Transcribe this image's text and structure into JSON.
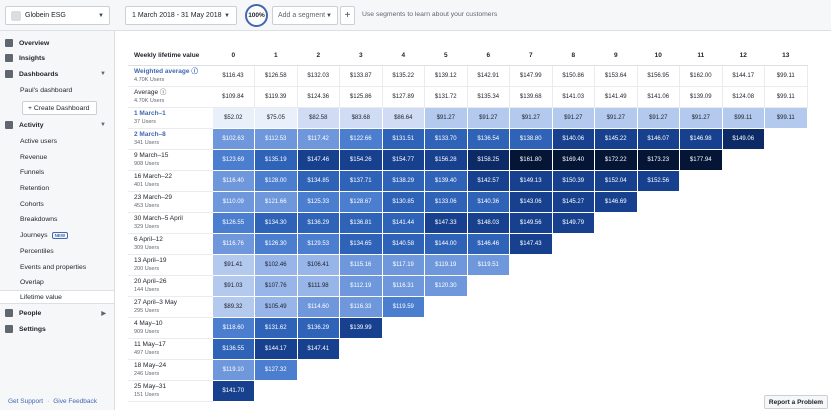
{
  "topbar": {
    "app_name": "Globein ESG",
    "date_range": "1 March 2018 - 31 May 2018",
    "percent_badge": "100%",
    "segment_placeholder": "Add a segment",
    "plus_label": "+",
    "segment_hint": "Use segments to learn about your customers"
  },
  "sidebar": {
    "overview": "Overview",
    "insights": "Insights",
    "dashboards": "Dashboards",
    "pauls_dashboard": "Paul's dashboard",
    "create_dashboard": "+ Create Dashboard",
    "activity": "Activity",
    "active_users": "Active users",
    "revenue": "Revenue",
    "funnels": "Funnels",
    "retention": "Retention",
    "cohorts": "Cohorts",
    "breakdowns": "Breakdowns",
    "journeys": "Journeys",
    "new_badge": "NEW",
    "percentiles": "Percentiles",
    "events_properties": "Events and properties",
    "overlap": "Overlap",
    "lifetime_value": "Lifetime value",
    "people": "People",
    "settings": "Settings",
    "get_support": "Get Support",
    "separator": "·",
    "give_feedback": "Give Feedback"
  },
  "table": {
    "header_label": "Weekly lifetime value",
    "columns": [
      "0",
      "1",
      "2",
      "3",
      "4",
      "5",
      "6",
      "7",
      "8",
      "9",
      "10",
      "11",
      "12",
      "13"
    ],
    "summary_rows": [
      {
        "label": "Weighted average ⓘ",
        "users": "4.70K Users",
        "blue": true,
        "values": [
          "$116.43",
          "$126.58",
          "$132.03",
          "$133.87",
          "$135.22",
          "$139.12",
          "$142.91",
          "$147.99",
          "$150.86",
          "$153.64",
          "$156.95",
          "$162.00",
          "$144.17",
          "$99.11"
        ]
      },
      {
        "label": "Average ⓘ",
        "users": "4.70K Users",
        "blue": false,
        "values": [
          "$109.84",
          "$119.39",
          "$124.36",
          "$125.86",
          "$127.89",
          "$131.72",
          "$135.34",
          "$139.68",
          "$141.03",
          "$141.49",
          "$141.06",
          "$139.09",
          "$124.08",
          "$99.11"
        ]
      }
    ],
    "cohort_rows": [
      {
        "label": "1 March–1",
        "users": "37 Users",
        "blue": true,
        "values": [
          "$52.02",
          "$75.05",
          "$82.58",
          "$83.68",
          "$86.64",
          "$91.27",
          "$91.27",
          "$91.27",
          "$91.27",
          "$91.27",
          "$91.27",
          "$91.27",
          "$99.11",
          "$99.11"
        ],
        "shades": [
          0,
          0,
          1,
          1,
          1,
          2,
          2,
          2,
          2,
          2,
          2,
          2,
          2,
          2
        ]
      },
      {
        "label": "2 March–8",
        "users": "341 Users",
        "blue": true,
        "values": [
          "$102.63",
          "$112.53",
          "$117.42",
          "$122.66",
          "$131.51",
          "$133.70",
          "$136.54",
          "$138.80",
          "$140.06",
          "$145.22",
          "$146.07",
          "$146.98",
          "$149.06"
        ],
        "shades": [
          4,
          4,
          4,
          5,
          6,
          6,
          6,
          6,
          7,
          7,
          7,
          7,
          8
        ]
      },
      {
        "label": "9 March–15",
        "users": "908 Users",
        "blue": false,
        "values": [
          "$123.69",
          "$135.19",
          "$147.46",
          "$154.26",
          "$154.77",
          "$156.28",
          "$158.25",
          "$161.80",
          "$169.40",
          "$172.22",
          "$173.23",
          "$177.94"
        ],
        "shades": [
          5,
          6,
          7,
          7,
          7,
          7,
          8,
          9,
          9,
          9,
          9,
          9
        ]
      },
      {
        "label": "16 March–22",
        "users": "401 Users",
        "blue": false,
        "values": [
          "$116.40",
          "$128.00",
          "$134.85",
          "$137.71",
          "$138.29",
          "$139.40",
          "$142.57",
          "$149.13",
          "$150.39",
          "$152.04",
          "$152.56"
        ],
        "shades": [
          4,
          5,
          6,
          6,
          6,
          6,
          7,
          7,
          7,
          7,
          7
        ]
      },
      {
        "label": "23 March–29",
        "users": "453 Users",
        "blue": false,
        "values": [
          "$110.09",
          "$121.66",
          "$125.33",
          "$128.67",
          "$130.85",
          "$133.06",
          "$140.36",
          "$143.06",
          "$145.27",
          "$146.69"
        ],
        "shades": [
          4,
          4,
          5,
          5,
          6,
          6,
          6,
          7,
          7,
          7
        ]
      },
      {
        "label": "30 March–5 April",
        "users": "329 Users",
        "blue": false,
        "values": [
          "$126.55",
          "$134.30",
          "$136.29",
          "$136.81",
          "$141.44",
          "$147.33",
          "$148.03",
          "$149.56",
          "$149.79"
        ],
        "shades": [
          5,
          6,
          6,
          6,
          6,
          7,
          7,
          7,
          7
        ]
      },
      {
        "label": "6 April–12",
        "users": "309 Users",
        "blue": false,
        "values": [
          "$116.76",
          "$126.30",
          "$129.53",
          "$134.65",
          "$140.58",
          "$144.00",
          "$146.46",
          "$147.43"
        ],
        "shades": [
          4,
          5,
          5,
          6,
          6,
          6,
          6,
          7
        ]
      },
      {
        "label": "13 April–19",
        "users": "200 Users",
        "blue": false,
        "values": [
          "$91.41",
          "$102.46",
          "$106.41",
          "$115.16",
          "$117.19",
          "$119.19",
          "$119.51"
        ],
        "shades": [
          2,
          3,
          3,
          4,
          4,
          4,
          4
        ]
      },
      {
        "label": "20 April–26",
        "users": "144 Users",
        "blue": false,
        "values": [
          "$91.03",
          "$107.76",
          "$111.98",
          "$112.19",
          "$116.31",
          "$120.30"
        ],
        "shades": [
          2,
          3,
          3,
          4,
          4,
          4
        ]
      },
      {
        "label": "27 April–3 May",
        "users": "295 Users",
        "blue": false,
        "values": [
          "$89.32",
          "$105.49",
          "$114.60",
          "$116.33",
          "$119.59"
        ],
        "shades": [
          2,
          3,
          4,
          4,
          5
        ]
      },
      {
        "label": "4 May–10",
        "users": "909 Users",
        "blue": false,
        "values": [
          "$118.60",
          "$131.62",
          "$136.29",
          "$139.99"
        ],
        "shades": [
          5,
          6,
          6,
          7
        ]
      },
      {
        "label": "11 May–17",
        "users": "497 Users",
        "blue": false,
        "values": [
          "$136.55",
          "$144.17",
          "$147.41"
        ],
        "shades": [
          6,
          7,
          7
        ]
      },
      {
        "label": "18 May–24",
        "users": "246 Users",
        "blue": false,
        "values": [
          "$119.10",
          "$127.32"
        ],
        "shades": [
          4,
          5
        ]
      },
      {
        "label": "25 May–31",
        "users": "151 Users",
        "blue": false,
        "values": [
          "$141.70"
        ],
        "shades": [
          7
        ]
      }
    ]
  },
  "report_problem": "Report a Problem"
}
